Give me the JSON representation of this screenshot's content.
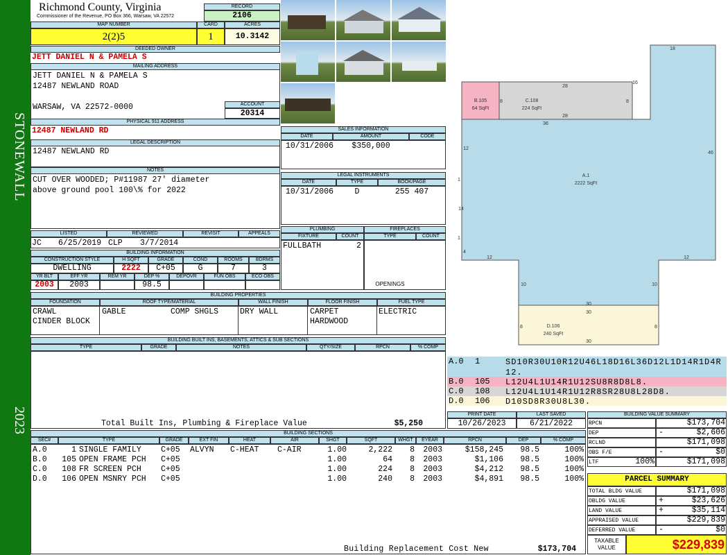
{
  "header": {
    "county": "Richmond County, Virginia",
    "commissioner": "Commissioner of the Revenue, PO Box 366, Warsaw, VA 22572",
    "record_label": "RECORD",
    "record": "2106",
    "map_label": "MAP NUMBER",
    "map_number": "2(2)5",
    "card_label": "CARD",
    "card": "1",
    "acres_label": "ACRES",
    "acres": "10.3142"
  },
  "sidebar": {
    "district": "STONEWALL",
    "year": "2023"
  },
  "owner": {
    "label": "DEEDED OWNER",
    "name": "JETT DANIEL N & PAMELA S",
    "mailing_label": "MAILING ADDRESS",
    "mailing_lines": [
      "JETT DANIEL N & PAMELA S",
      "12487 NEWLAND ROAD",
      "WARSAW, VA 22572-0000"
    ],
    "account_label": "ACCOUNT",
    "account": "20314"
  },
  "physical": {
    "label": "PHYSICAL 911 ADDRESS",
    "value": "12487 NEWLAND RD"
  },
  "legal": {
    "label": "LEGAL DESCRIPTION",
    "value": "12487 NEWLAND RD"
  },
  "notes": {
    "label": "NOTES",
    "lines": [
      "CUT OVER WOODED; P#11987 27' diameter",
      "above ground pool 100\\% for 2022"
    ]
  },
  "review": {
    "headers": [
      "LISTED",
      "REVIEWED",
      "REVISIT",
      "APPEALS"
    ],
    "listed_by": "JC",
    "listed": "6/25/2019",
    "reviewed_by": "CLP",
    "reviewed": "3/7/2014"
  },
  "building_info": {
    "label": "BUILDING INFORMATION",
    "headers": [
      "CONSTRUCTION STYLE",
      "H SQFT",
      "GRADE",
      "COND",
      "ROOMS",
      "BDRMS"
    ],
    "values": [
      "DWELLING",
      "2222",
      "C+05",
      "G",
      "7",
      "3"
    ],
    "headers2": [
      "YR BLT",
      "EFF YR",
      "REM YR",
      "DEP %",
      "DEPOVR",
      "FUN OBS",
      "ECO OBS"
    ],
    "yr_blt": "2003",
    "eff_yr": "2003",
    "dep": "98.5"
  },
  "sales": {
    "label": "SALES INFORMATION",
    "headers": [
      "DATE",
      "AMOUNT",
      "CODE"
    ],
    "rows": [
      {
        "date": "10/31/2006",
        "amount": "$350,000"
      }
    ]
  },
  "instruments": {
    "label": "LEGAL INSTRUMENTS",
    "headers": [
      "DATE",
      "TYPE",
      "BOOK/PAGE"
    ],
    "rows": [
      {
        "date": "10/31/2006",
        "type": "D",
        "book_page": "255 407"
      }
    ]
  },
  "plumbing": {
    "label": "PLUMBING",
    "headers": [
      "FIXTURE",
      "COUNT"
    ],
    "rows": [
      {
        "fixture": "FULLBATH",
        "count": "2"
      }
    ]
  },
  "fireplaces": {
    "label": "FIREPLACES",
    "headers": [
      "TYPE",
      "COUNT"
    ],
    "openings_label": "OPENINGS"
  },
  "properties": {
    "label": "BUILDING PROPERTIES",
    "headers": [
      "FOUNDATION",
      "ROOF TYPE/MATERIAL",
      "WALL FINISH",
      "FLOOR FINISH",
      "FUEL TYPE"
    ],
    "foundation": [
      "CRAWL",
      "CINDER BLOCK"
    ],
    "roof": [
      "GABLE",
      "COMP SHGLS"
    ],
    "wall": [
      "DRY WALL"
    ],
    "floor": [
      "CARPET",
      "HARDWOOD"
    ],
    "fuel": [
      "ELECTRIC"
    ]
  },
  "built_ins": {
    "label": "BUILDING BUILT INS, BASEMENTS, ATTICS & SUB SECTIONS",
    "headers": [
      "TYPE",
      "GRADE",
      "NOTES",
      "QTY/SIZE",
      "RPCN",
      "% COMP"
    ],
    "total_label": "Total Built Ins, Plumbing & Fireplace Value",
    "total": "$5,250"
  },
  "sketch": {
    "areas": [
      {
        "id": "B.105",
        "sqft": "64 SqFt"
      },
      {
        "id": "C.108",
        "sqft": "224 SqFt"
      },
      {
        "id": "A.1",
        "sqft": "2222 SqFt"
      },
      {
        "id": "D.106",
        "sqft": "240 SqFt"
      }
    ],
    "dims": [
      "18",
      "16",
      "28",
      "8",
      "8",
      "28",
      "36",
      "12",
      "46",
      "1",
      "14",
      "1",
      "4",
      "12",
      "12",
      "10",
      "10",
      "30",
      "30",
      "8",
      "8",
      "30"
    ]
  },
  "sketch_codes": [
    {
      "sec": "A.0",
      "code": "1",
      "path": "SD10R30U10R12U46L18D16L36D12L1D14R1D4R12."
    },
    {
      "sec": "B.0",
      "code": "105",
      "path": "L12U4L1U14R1U12SU8R8D8L8."
    },
    {
      "sec": "C.0",
      "code": "108",
      "path": "L12U4L1U14R1U12R8SR28U8L28D8."
    },
    {
      "sec": "D.0",
      "code": "106",
      "path": "D10SD8R30U8L30."
    }
  ],
  "dates": {
    "print_label": "PRINT DATE",
    "print": "10/26/2023",
    "saved_label": "LAST SAVED",
    "saved": "6/21/2022"
  },
  "sections": {
    "label": "BUILDING SECTIONS",
    "headers": [
      "SEC#",
      "TYPE",
      "GRADE",
      "EXT FIN",
      "HEAT",
      "AIR",
      "SHGT",
      "SQFT",
      "WHGT",
      "EYEAR",
      "RPCN",
      "DEP",
      "% COMP"
    ],
    "rows": [
      {
        "sec": "A.0",
        "code": "1",
        "type": "SINGLE FAMILY",
        "grade": "C+05",
        "ext_fin": "ALVYN",
        "heat": "C-HEAT",
        "air": "C-AIR",
        "shgt": "1.00",
        "sqft": "2,222",
        "whgt": "8",
        "eyear": "2003",
        "rpcn": "$158,245",
        "dep": "98.5",
        "comp": "100%"
      },
      {
        "sec": "B.0",
        "code": "105",
        "type": "OPEN FRAME PCH",
        "grade": "C+05",
        "shgt": "1.00",
        "sqft": "64",
        "whgt": "8",
        "eyear": "2003",
        "rpcn": "$1,106",
        "dep": "98.5",
        "comp": "100%"
      },
      {
        "sec": "C.0",
        "code": "108",
        "type": "FR SCREEN PCH",
        "grade": "C+05",
        "shgt": "1.00",
        "sqft": "224",
        "whgt": "8",
        "eyear": "2003",
        "rpcn": "$4,212",
        "dep": "98.5",
        "comp": "100%"
      },
      {
        "sec": "D.0",
        "code": "106",
        "type": "OPEN MSNRY PCH",
        "grade": "C+05",
        "shgt": "1.00",
        "sqft": "240",
        "whgt": "8",
        "eyear": "2003",
        "rpcn": "$4,891",
        "dep": "98.5",
        "comp": "100%"
      }
    ]
  },
  "replacement": {
    "label": "Building Replacement Cost New",
    "value": "$173,704"
  },
  "value_summary": {
    "label": "BUILDING VALUE SUMMARY",
    "rows": [
      {
        "label": "RPCN",
        "value": "$173,704"
      },
      {
        "label": "DEP",
        "sign": "-",
        "value": "$2,606"
      },
      {
        "label": "RCLND",
        "value": "$171,098"
      },
      {
        "label": "OBS F/E",
        "sign": "-",
        "value": "$0"
      },
      {
        "label": "LTF",
        "pct": "100%",
        "value": "$171,098"
      }
    ]
  },
  "parcel_summary": {
    "title": "PARCEL SUMMARY",
    "rows": [
      {
        "label": "TOTAL BLDG VALUE",
        "value": "$171,098"
      },
      {
        "label": "OBLDG VALUE",
        "sign": "+",
        "value": "$23,626"
      },
      {
        "label": "LAND VALUE",
        "sign": "+",
        "value": "$35,114"
      },
      {
        "label": "APPRAISED VALUE",
        "value": "$229,839"
      },
      {
        "label": "DEFERRED VALUE",
        "sign": "-",
        "value": "$0"
      }
    ],
    "taxable_label": "TAXABLE VALUE",
    "taxable": "$229,839"
  }
}
